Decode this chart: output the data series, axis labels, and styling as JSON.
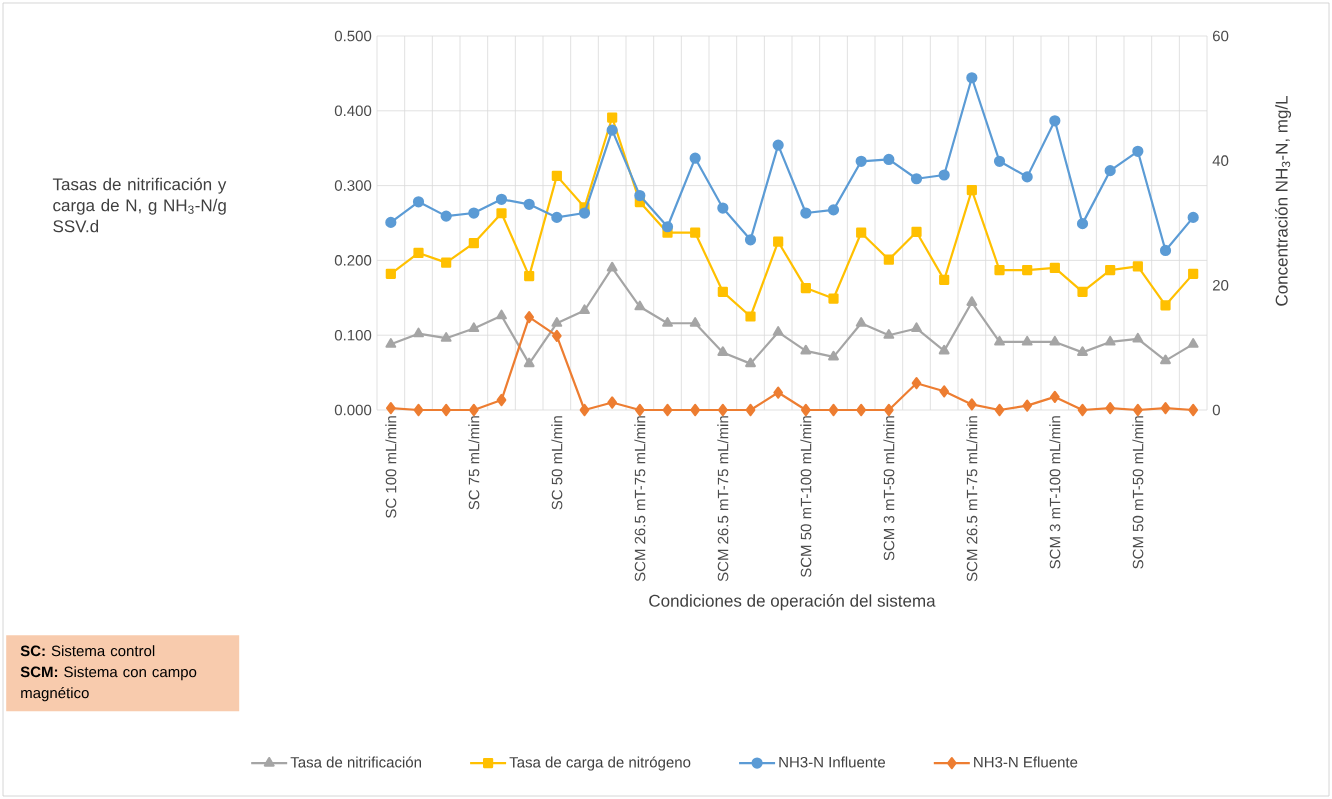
{
  "chart_data": {
    "type": "line",
    "xlabel": "Condiciones de operación del sistema",
    "ylabel": "Tasas de nitrificación y carga de N, g NH$_{3}$-N/g SSV.d",
    "y2label": "Concentración NH$_{3}$-N, mg/L",
    "categories": [
      "SC 100 mL/min",
      null,
      null,
      "SC 75 mL/min",
      null,
      null,
      "SC 50 mL/min",
      null,
      null,
      "SCM 26.5 mT-75 mL/min",
      null,
      null,
      "SCM 26.5 mT-75 mL/min",
      null,
      null,
      "SCM 50 mT-100 mL/min",
      null,
      null,
      "SCM 3 mT-50 mL/min",
      null,
      null,
      "SCM 26.5 mT-75 mL/min",
      null,
      null,
      "SCM 3 mT-100 mL/min",
      null,
      null,
      "SCM 50 mT-50 mL/min",
      null,
      null
    ],
    "series": [
      {
        "name": "Tasa de nitrificación",
        "color": "#a5a5a5",
        "marker": "triangle",
        "values": [
          0.088,
          0.102,
          0.096,
          0.109,
          0.126,
          0.062,
          0.116,
          0.133,
          0.19,
          0.138,
          0.116,
          0.116,
          0.077,
          0.062,
          0.104,
          0.079,
          0.071,
          0.116,
          0.1,
          0.109,
          0.079,
          0.144,
          0.091,
          0.091,
          0.091,
          0.077,
          0.091,
          0.095,
          0.066,
          0.088
        ]
      },
      {
        "name": "Tasa de carga de nitrógeno",
        "color": "#ffc000",
        "marker": "square",
        "values": [
          0.182,
          0.21,
          0.197,
          0.223,
          0.263,
          0.179,
          0.313,
          0.271,
          0.391,
          0.278,
          0.237,
          0.237,
          0.158,
          0.125,
          0.225,
          0.163,
          0.149,
          0.237,
          0.201,
          0.238,
          0.174,
          0.294,
          0.187,
          0.187,
          0.19,
          0.158,
          0.187,
          0.192,
          0.14,
          0.182
        ]
      },
      {
        "name": "NH3-N Influente",
        "color": "#5b9bd5",
        "marker": "circle",
        "axis": "y2",
        "values": [
          30.1,
          33.4,
          31.1,
          31.6,
          33.8,
          33.0,
          30.9,
          31.6,
          44.9,
          34.4,
          29.4,
          40.4,
          32.4,
          27.3,
          42.5,
          31.6,
          32.1,
          39.9,
          40.2,
          37.1,
          37.7,
          53.3,
          39.9,
          37.4,
          46.4,
          29.9,
          38.4,
          41.5,
          25.6,
          30.9
        ]
      },
      {
        "name": "NH3-N Efluente",
        "color": "#ed7d31",
        "marker": "diamond",
        "axis": "y2",
        "values": [
          0.3,
          0,
          0,
          0,
          1.6,
          14.9,
          11.9,
          0,
          1.2,
          0,
          0,
          0,
          0,
          0,
          2.8,
          0,
          0,
          0,
          0,
          4.3,
          3.0,
          0.9,
          0,
          0.7,
          2.1,
          0,
          0.3,
          0,
          0.3,
          0
        ]
      }
    ],
    "ylim": [
      0,
      0.5
    ],
    "yticks": [
      {
        "value": 0,
        "label": "0.000"
      },
      {
        "value": 0.1,
        "label": "0.100"
      },
      {
        "value": 0.2,
        "label": "0.200"
      },
      {
        "value": 0.3,
        "label": "0.300"
      },
      {
        "value": 0.4,
        "label": "0.400"
      },
      {
        "value": 0.5,
        "label": "0.500"
      }
    ],
    "y2lim": [
      0,
      60
    ],
    "y2ticks": [
      0,
      20,
      40,
      60
    ],
    "grid": true,
    "legend": "bottom",
    "annotations": [
      "**SC:** Sistema control",
      "**SCM:** Sistema con campo magnético"
    ]
  }
}
